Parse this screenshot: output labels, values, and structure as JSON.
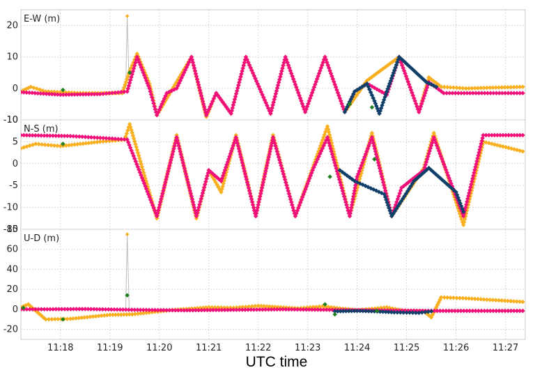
{
  "chart_data": {
    "type": "scatter",
    "xlabel": "UTC time",
    "x_ticks": [
      "11:18",
      "11:19",
      "11:20",
      "11:21",
      "11:22",
      "11:23",
      "11:24",
      "11:25",
      "11:26",
      "11:27"
    ],
    "x_range_min": [
      17.2,
      27.4
    ],
    "grid": true,
    "colors": {
      "pink": "#f0107a",
      "orange": "#f8b020",
      "navy": "#10406a",
      "green": "#208020",
      "grey_line": "#bbbbbb"
    },
    "panels": [
      {
        "label": "E-W (m)",
        "ylim": [
          -10,
          25
        ],
        "y_ticks": [
          20,
          10,
          0,
          -10
        ],
        "series": [
          {
            "color": "pink",
            "points": [
              [
                17.2,
                -1.2
              ],
              [
                18.0,
                -2.0
              ],
              [
                18.8,
                -1.8
              ],
              [
                19.35,
                -1.0
              ],
              [
                19.55,
                10.0
              ],
              [
                19.8,
                0
              ],
              [
                19.95,
                -8.5
              ],
              [
                20.15,
                -1.5
              ],
              [
                20.35,
                0
              ],
              [
                20.65,
                10.0
              ],
              [
                20.95,
                -8.5
              ],
              [
                21.15,
                -1.5
              ],
              [
                21.45,
                -8.0
              ],
              [
                21.75,
                10.0
              ],
              [
                22.25,
                -8.0
              ],
              [
                22.55,
                10.0
              ],
              [
                22.95,
                -7.5
              ],
              [
                23.35,
                10.0
              ],
              [
                23.75,
                -7.5
              ],
              [
                23.95,
                -1.0
              ],
              [
                24.2,
                1.5
              ],
              [
                24.6,
                -2.0
              ],
              [
                24.85,
                10.0
              ],
              [
                25.25,
                -7.5
              ],
              [
                25.45,
                2.0
              ],
              [
                25.75,
                -1.5
              ],
              [
                27.35,
                -1.5
              ]
            ]
          },
          {
            "color": "orange",
            "points": [
              [
                17.2,
                -1.0
              ],
              [
                17.4,
                0.5
              ],
              [
                17.7,
                -1.0
              ],
              [
                18.4,
                -1.5
              ],
              [
                19.25,
                -1.5
              ],
              [
                19.4,
                5.5
              ],
              [
                19.55,
                11.0
              ],
              [
                19.8,
                1.5
              ],
              [
                19.95,
                -8.5
              ],
              [
                20.65,
                10.0
              ],
              [
                20.95,
                -9.0
              ],
              [
                21.15,
                -1.5
              ],
              [
                21.45,
                -8.0
              ],
              [
                21.75,
                10.0
              ],
              [
                22.25,
                -8.0
              ],
              [
                22.55,
                10.0
              ],
              [
                22.95,
                -7.5
              ],
              [
                23.35,
                10.0
              ],
              [
                23.75,
                -7.5
              ],
              [
                24.2,
                2.5
              ],
              [
                24.85,
                10.0
              ],
              [
                25.25,
                -7.5
              ],
              [
                25.45,
                3.5
              ],
              [
                25.7,
                0.5
              ],
              [
                26.2,
                0
              ],
              [
                27.35,
                0.5
              ]
            ]
          },
          {
            "color": "navy",
            "points": [
              [
                23.75,
                -7.5
              ],
              [
                23.95,
                -1.0
              ],
              [
                24.2,
                1.5
              ],
              [
                24.35,
                -4.0
              ],
              [
                24.45,
                -8.0
              ],
              [
                24.6,
                -1.0
              ],
              [
                24.85,
                10.0
              ],
              [
                25.4,
                2.0
              ],
              [
                25.6,
                0.5
              ]
            ]
          },
          {
            "color": "green",
            "points": [
              [
                18.05,
                -0.5
              ],
              [
                19.4,
                5.0
              ],
              [
                23.85,
                -5.0
              ],
              [
                24.3,
                -6.0
              ]
            ]
          }
        ],
        "spikes": [
          {
            "x": 19.35,
            "y": 23.0
          }
        ]
      },
      {
        "label": "N-S (m)",
        "ylim": [
          -15,
          10
        ],
        "y_ticks": [
          10,
          5,
          0,
          -5,
          -10,
          -15
        ],
        "series": [
          {
            "color": "pink",
            "points": [
              [
                17.2,
                6.5
              ],
              [
                18.2,
                6.3
              ],
              [
                19.35,
                5.5
              ],
              [
                19.95,
                -12.0
              ],
              [
                20.35,
                6.0
              ],
              [
                20.75,
                -12.0
              ],
              [
                21.0,
                -1.5
              ],
              [
                21.25,
                -4.0
              ],
              [
                21.55,
                6.0
              ],
              [
                21.95,
                -12.0
              ],
              [
                22.3,
                6.0
              ],
              [
                22.75,
                -12.0
              ],
              [
                23.1,
                -1.5
              ],
              [
                23.4,
                6.0
              ],
              [
                23.85,
                -12.0
              ],
              [
                24.0,
                -3.0
              ],
              [
                24.3,
                6.0
              ],
              [
                24.7,
                -12.0
              ],
              [
                24.9,
                -5.5
              ],
              [
                25.35,
                -1.5
              ],
              [
                25.55,
                6.0
              ],
              [
                26.15,
                -12.0
              ],
              [
                26.55,
                6.5
              ],
              [
                27.35,
                6.5
              ]
            ]
          },
          {
            "color": "orange",
            "points": [
              [
                17.2,
                3.5
              ],
              [
                17.5,
                4.5
              ],
              [
                18.0,
                4.0
              ],
              [
                18.8,
                5.0
              ],
              [
                19.3,
                5.5
              ],
              [
                19.4,
                9.0
              ],
              [
                19.95,
                -12.5
              ],
              [
                20.35,
                6.5
              ],
              [
                20.75,
                -12.5
              ],
              [
                21.0,
                -1.5
              ],
              [
                21.25,
                -6.5
              ],
              [
                21.55,
                6.5
              ],
              [
                21.95,
                -12.0
              ],
              [
                22.3,
                6.5
              ],
              [
                22.75,
                -12.0
              ],
              [
                23.1,
                -1.0
              ],
              [
                23.4,
                8.5
              ],
              [
                23.85,
                -12.0
              ],
              [
                24.3,
                7.0
              ],
              [
                24.7,
                -12.0
              ],
              [
                25.35,
                -1.0
              ],
              [
                25.55,
                7.0
              ],
              [
                26.15,
                -14.0
              ],
              [
                26.55,
                5.0
              ],
              [
                27.35,
                2.8
              ]
            ]
          },
          {
            "color": "navy",
            "points": [
              [
                23.65,
                -1.5
              ],
              [
                23.95,
                -4.0
              ],
              [
                24.55,
                -7.0
              ],
              [
                24.7,
                -12.0
              ],
              [
                25.15,
                -4.0
              ],
              [
                25.45,
                -1.0
              ],
              [
                26.0,
                -6.5
              ],
              [
                26.15,
                -11.0
              ]
            ]
          },
          {
            "color": "green",
            "points": [
              [
                18.05,
                4.5
              ],
              [
                19.45,
                11.0
              ],
              [
                23.45,
                -3.0
              ],
              [
                24.35,
                1.0
              ]
            ]
          }
        ]
      },
      {
        "label": "U-D (m)",
        "ylim": [
          -30,
          80
        ],
        "y_ticks": [
          80,
          60,
          40,
          20,
          0,
          -20
        ],
        "series": [
          {
            "color": "pink",
            "points": [
              [
                17.2,
                0
              ],
              [
                18.5,
                0.3
              ],
              [
                19.5,
                -0.5
              ],
              [
                20.5,
                -1.0
              ],
              [
                21.5,
                -0.5
              ],
              [
                22.5,
                0
              ],
              [
                23.5,
                -0.5
              ],
              [
                24.5,
                -1.0
              ],
              [
                25.5,
                -1.5
              ],
              [
                27.35,
                -1.5
              ]
            ]
          },
          {
            "color": "orange",
            "points": [
              [
                17.2,
                2.0
              ],
              [
                17.35,
                5.0
              ],
              [
                17.7,
                -10.0
              ],
              [
                18.2,
                -9.5
              ],
              [
                19.0,
                -5.5
              ],
              [
                19.45,
                -5.0
              ],
              [
                20.2,
                -1.0
              ],
              [
                21.0,
                2.0
              ],
              [
                21.5,
                1.5
              ],
              [
                22.0,
                3.5
              ],
              [
                22.8,
                1.0
              ],
              [
                23.3,
                3.0
              ],
              [
                24.0,
                -1.0
              ],
              [
                24.6,
                2.0
              ],
              [
                25.0,
                -2.0
              ],
              [
                25.35,
                -2.0
              ],
              [
                25.5,
                -8.0
              ],
              [
                25.7,
                12.0
              ],
              [
                26.2,
                11.0
              ],
              [
                27.35,
                7.5
              ]
            ]
          },
          {
            "color": "navy",
            "points": [
              [
                23.55,
                -2.0
              ],
              [
                24.0,
                -1.5
              ],
              [
                24.35,
                -2.0
              ],
              [
                24.75,
                -3.0
              ],
              [
                25.25,
                -3.5
              ],
              [
                25.5,
                -2.0
              ]
            ]
          },
          {
            "color": "green",
            "points": [
              [
                17.25,
                1.5
              ],
              [
                18.05,
                -10.0
              ],
              [
                19.35,
                14.0
              ],
              [
                23.35,
                5.0
              ],
              [
                23.55,
                -5.0
              ],
              [
                24.4,
                -1.5
              ]
            ]
          }
        ],
        "spikes": [
          {
            "x": 19.35,
            "y": 75
          }
        ]
      }
    ]
  }
}
